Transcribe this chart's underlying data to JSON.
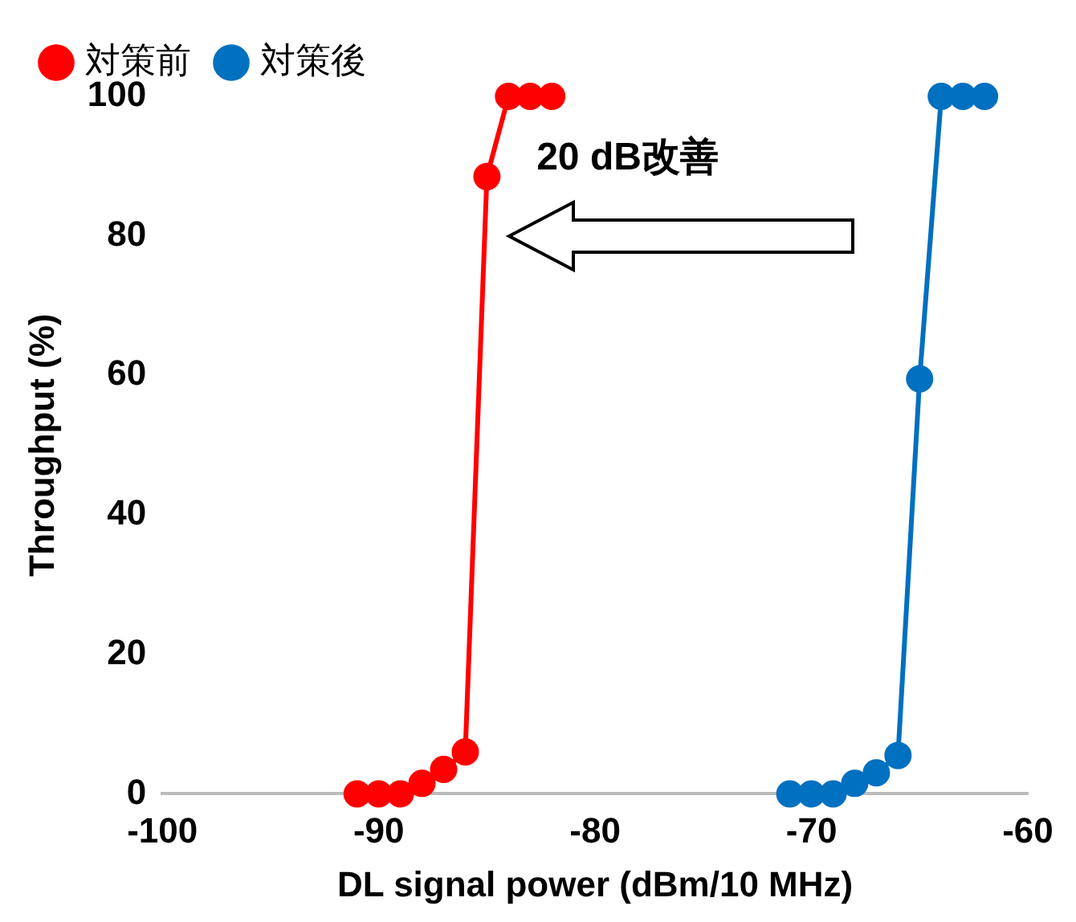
{
  "chart_data": {
    "type": "line",
    "xlabel": "DL signal power (dBm/10 MHz)",
    "ylabel": "Throughput (%)",
    "xlim": [
      -100,
      -60
    ],
    "xticks": [
      -100,
      -90,
      -80,
      -70,
      -60
    ],
    "ylim": [
      0,
      100
    ],
    "yticks": [
      0,
      20,
      40,
      60,
      80,
      100
    ],
    "grid": false,
    "legend": "top left",
    "marker": "circle",
    "line_style": "solid",
    "annotations": [
      "20 dB改善"
    ],
    "series": [
      {
        "name": "対策前",
        "color": "#ff0000",
        "x": [
          -91,
          -90,
          -89,
          -88,
          -87,
          -86,
          -85,
          -84,
          -83,
          -82
        ],
        "values": [
          0,
          0,
          0,
          1.5,
          3.5,
          6,
          88.5,
          100,
          100,
          100
        ]
      },
      {
        "name": "対策後",
        "color": "#0070c0",
        "x": [
          -71,
          -70,
          -69,
          -68,
          -67,
          -66,
          -65,
          -64,
          -63,
          -62
        ],
        "values": [
          0,
          0,
          0,
          1.5,
          3,
          5.5,
          59.5,
          100,
          100,
          100
        ]
      }
    ]
  }
}
